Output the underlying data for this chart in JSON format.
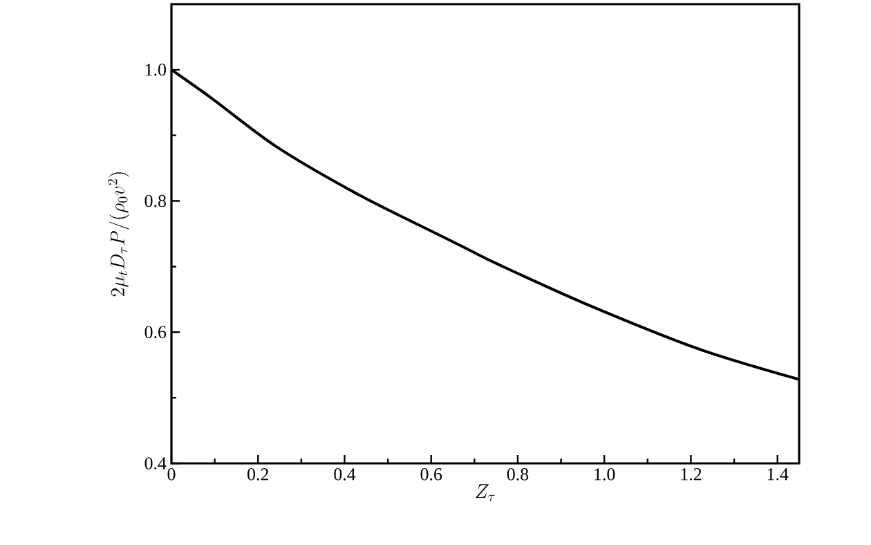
{
  "chart_data": {
    "type": "line",
    "xlabel": "Z_\\tau",
    "ylabel": "2\\mu_t D_\\tau P/(\\rho_0 v^2)",
    "x": [
      0,
      0.094,
      0.242,
      0.434,
      0.625,
      0.689,
      0.753,
      0.954,
      1.22,
      1.45
    ],
    "series": [
      {
        "color": "#000000",
        "values": [
          1.0,
          0.956,
          0.883,
          0.809,
          0.746,
          0.725,
          0.704,
          0.644,
          0.574,
          0.528
        ]
      }
    ],
    "xlim": [
      0,
      1.45
    ],
    "ylim": [
      0.4,
      1.1
    ],
    "xticks": [
      0,
      {
        "value": 0.1,
        "label": null
      },
      0.2,
      {
        "value": 0.3,
        "label": null
      },
      0.4,
      {
        "value": 0.5,
        "label": null
      },
      0.6,
      {
        "value": 0.7,
        "label": null
      },
      0.8,
      {
        "value": 0.9,
        "label": null
      },
      {
        "value": 1.0,
        "label": "1.0"
      },
      {
        "value": 1.1,
        "label": null
      },
      1.2,
      {
        "value": 1.3,
        "label": null
      },
      1.4
    ],
    "yticks": [
      0.4,
      {
        "value": 0.5,
        "label": null
      },
      0.6,
      {
        "value": 0.7,
        "label": null
      },
      0.8,
      {
        "value": 0.9,
        "label": null
      },
      {
        "value": 1.0,
        "label": "1.0"
      }
    ],
    "grid": false,
    "marker": "none",
    "line_style": "solid"
  }
}
